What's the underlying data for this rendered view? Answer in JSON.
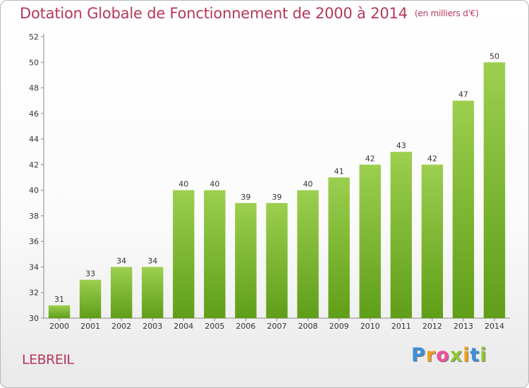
{
  "title": "Dotation Globale de Fonctionnement de 2000 à 2014",
  "subtitle": "(en milliers d'€)",
  "place_label": "LEBREIL",
  "logo": {
    "p": "P",
    "r": "r",
    "o": "o",
    "x": "x",
    "i1": "i",
    "t": "t",
    "i2": "i"
  },
  "colors": {
    "title": "#b5385a",
    "bar_top": "#9ccf4f",
    "bar_bottom": "#5f9e18"
  },
  "chart_data": {
    "type": "bar",
    "categories": [
      "2000",
      "2001",
      "2002",
      "2003",
      "2004",
      "2005",
      "2006",
      "2007",
      "2008",
      "2009",
      "2010",
      "2011",
      "2012",
      "2013",
      "2014"
    ],
    "values": [
      31,
      33,
      34,
      34,
      40,
      40,
      39,
      39,
      40,
      41,
      42,
      43,
      42,
      47,
      50
    ],
    "data_labels": [
      "31",
      "33",
      "34",
      "34",
      "40",
      "40",
      "39",
      "39",
      "40",
      "41",
      "42",
      "43",
      "42",
      "47",
      "50"
    ],
    "title": "Dotation Globale de Fonctionnement de 2000 à 2014",
    "xlabel": "",
    "ylabel": "",
    "ylim": [
      30,
      52
    ],
    "yticks": [
      30,
      32,
      34,
      36,
      38,
      40,
      42,
      44,
      46,
      48,
      50,
      52
    ],
    "grid": false,
    "legend": "none"
  }
}
